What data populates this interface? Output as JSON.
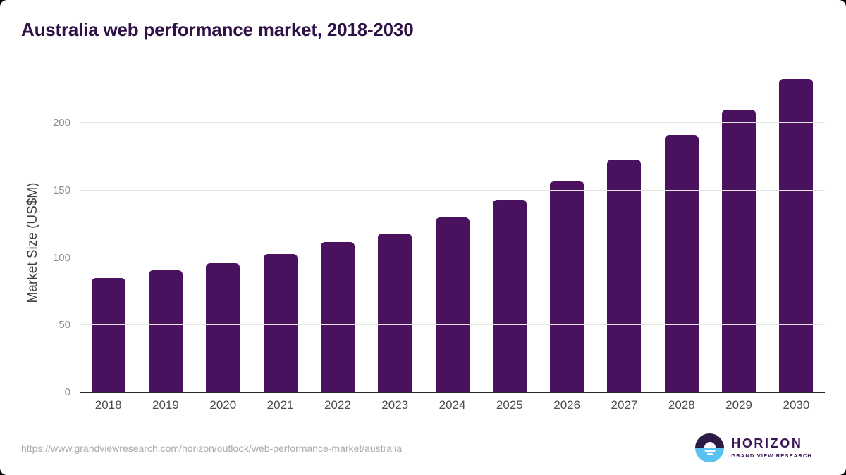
{
  "chart_data": {
    "type": "bar",
    "title": "Australia web performance market, 2018-2030",
    "categories": [
      "2018",
      "2019",
      "2020",
      "2021",
      "2022",
      "2023",
      "2024",
      "2025",
      "2026",
      "2027",
      "2028",
      "2029",
      "2030"
    ],
    "values": [
      85,
      91,
      96,
      103,
      112,
      118,
      130,
      143,
      157,
      173,
      191,
      210,
      233
    ],
    "xlabel": "",
    "ylabel": "Market Size (US$M)",
    "ylim": [
      0,
      240
    ],
    "y_ticks": [
      0,
      50,
      100,
      150,
      200
    ],
    "grid": true,
    "legend": false,
    "bar_color": "#4A115E",
    "gridline_color": "#E5E5E5",
    "axis_color": "#262626"
  },
  "footer": {
    "source_url": "https://www.grandviewresearch.com/horizon/outlook/web-performance-market/australia",
    "logo": {
      "brand": "HORIZON",
      "tagline": "GRAND VIEW RESEARCH",
      "icon": "horizon-sun-icon",
      "purple": "#2E1A47",
      "blue": "#56C3F2"
    }
  }
}
